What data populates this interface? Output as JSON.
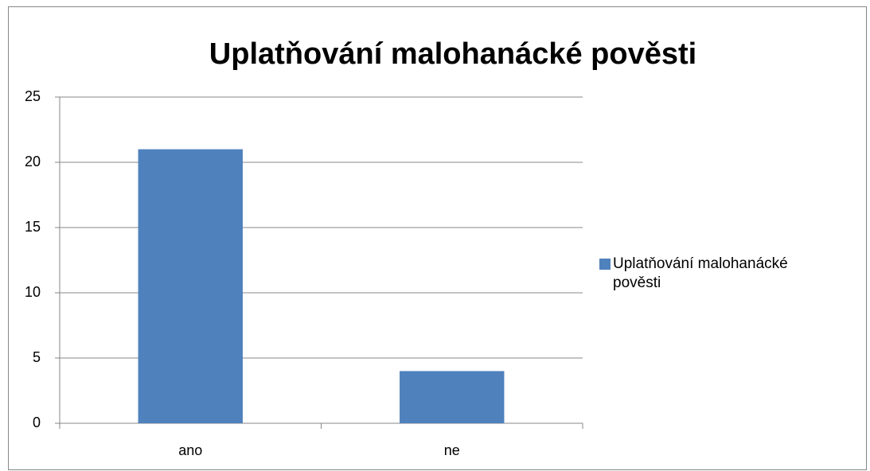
{
  "chart_data": {
    "type": "bar",
    "title": "Uplatňování malohanácké pověsti",
    "categories": [
      "ano",
      "ne"
    ],
    "series": [
      {
        "name": "Uplatňování malohanácké pověsti",
        "color": "#4f81bd",
        "values": [
          21,
          4
        ]
      }
    ],
    "ylim": [
      0,
      25
    ],
    "yticks": [
      0,
      5,
      10,
      15,
      20,
      25
    ],
    "grid": true,
    "legend": "right"
  }
}
